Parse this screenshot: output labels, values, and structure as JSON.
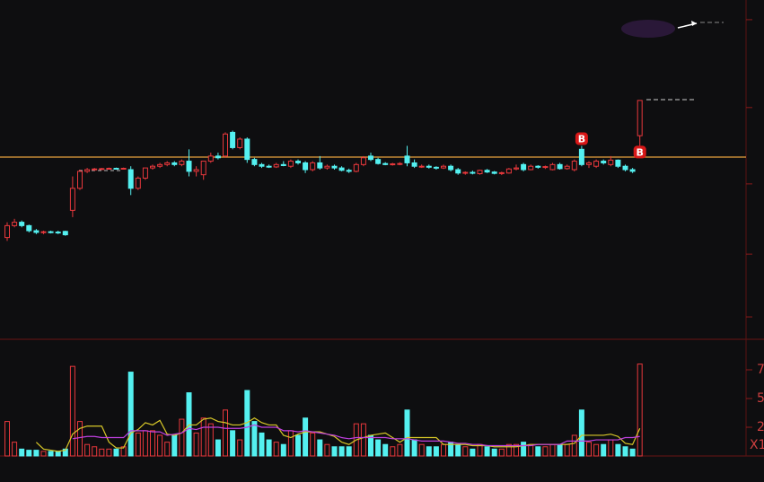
{
  "chart_data": {
    "type": "candlestick",
    "up_color": "#e8383c",
    "down_color": "#54f0f0",
    "ref_line": 53.7,
    "ref_color": "#e8a23c",
    "open": [
      30,
      33.5,
      34.5,
      33.5,
      32,
      31.5,
      31.7,
      31.6,
      31.8,
      38,
      44.5,
      49.5,
      50,
      50.2,
      50.3,
      50.4,
      50.3,
      50,
      44.5,
      47.5,
      50.5,
      51,
      51.5,
      52,
      51.5,
      52.5,
      49.5,
      48.5,
      52.5,
      54,
      54,
      61,
      56.5,
      59,
      53,
      51.5,
      51,
      50.8,
      51.5,
      51,
      52.5,
      52,
      50,
      52,
      50.5,
      51,
      50.5,
      49.8,
      49.5,
      51.5,
      54,
      53,
      51.8,
      51.5,
      51.7,
      54,
      52,
      51,
      51,
      50.7,
      50.5,
      51,
      50,
      49,
      49.2,
      48.8,
      49.8,
      49.3,
      48.9,
      49,
      50.2,
      51.5,
      50,
      51,
      50.7,
      50,
      51.5,
      50.3,
      50,
      56,
      51.5,
      51,
      52.5,
      51.5,
      52.8,
      51,
      50,
      60
    ],
    "high": [
      34.5,
      35.5,
      35,
      33.8,
      32.5,
      32,
      32,
      32,
      32,
      48,
      50,
      50.5,
      50.5,
      50.5,
      50.6,
      50.6,
      50.6,
      51,
      48,
      50.5,
      51.5,
      52,
      52.5,
      52.5,
      53,
      56,
      51,
      52.5,
      55,
      55,
      61,
      61.5,
      59.5,
      59.5,
      53.5,
      52,
      51.5,
      52,
      52.5,
      53,
      53,
      52.5,
      52.5,
      54,
      51.5,
      51.5,
      51,
      50.3,
      52,
      54,
      55,
      53.5,
      52.2,
      52,
      52.2,
      57,
      53,
      51.5,
      51.5,
      51,
      51.5,
      51.5,
      50.5,
      49.5,
      49.7,
      50,
      50.2,
      49.6,
      49.4,
      50.5,
      51.5,
      52,
      51.5,
      51.3,
      51.2,
      52,
      52,
      51.5,
      53,
      57,
      52.5,
      53,
      53,
      54,
      53,
      51.5,
      50.5,
      70.5
    ],
    "low": [
      29,
      33,
      33,
      31.5,
      31,
      31,
      31.2,
      31,
      30.5,
      36,
      44,
      49,
      49.7,
      50,
      50,
      50.1,
      50,
      42.5,
      44,
      47,
      50,
      50.5,
      51,
      51,
      51,
      48,
      48,
      47,
      52,
      53,
      53.5,
      56,
      56,
      52,
      51,
      50.5,
      50.5,
      50.5,
      51,
      50.5,
      51.5,
      49,
      49.5,
      50,
      50,
      50,
      49.5,
      49,
      49.2,
      51,
      52.5,
      51.5,
      51.3,
      51.2,
      51.3,
      51,
      50.5,
      50.5,
      50.3,
      50,
      50.2,
      49.5,
      48.5,
      48.5,
      48.6,
      48.5,
      49,
      48.6,
      48.4,
      48.8,
      49.8,
      49.5,
      49.8,
      50.3,
      50.2,
      49.8,
      50,
      50,
      49.5,
      51,
      50.5,
      50.5,
      51.5,
      51,
      50.5,
      49.5,
      49,
      56.5
    ],
    "close": [
      33.5,
      34.5,
      33.5,
      32,
      31.5,
      31.7,
      31.6,
      31.5,
      30.8,
      44.5,
      49.5,
      50,
      50.2,
      50.3,
      50.4,
      50.3,
      50.4,
      44.5,
      47.5,
      50.5,
      51,
      51.5,
      52,
      51.5,
      52.5,
      49.5,
      50,
      52.5,
      54,
      53.5,
      60.5,
      56.5,
      59,
      53,
      51.5,
      51,
      50.8,
      51.5,
      51.2,
      52.5,
      52,
      50,
      52,
      50.5,
      51,
      50.5,
      49.8,
      49.5,
      51.5,
      53.5,
      53,
      51.8,
      51.5,
      51.7,
      51.8,
      52,
      51,
      51,
      50.7,
      50.5,
      51,
      50,
      49,
      49.2,
      49,
      49.8,
      49.3,
      48.9,
      49.1,
      50.2,
      50.5,
      50,
      51,
      50.7,
      50.9,
      51.5,
      50.3,
      51,
      52.5,
      51.5,
      52,
      52.5,
      52,
      52.8,
      51,
      50,
      49.5,
      70.4
    ],
    "volume": [
      30,
      12,
      6,
      5,
      5,
      4,
      4,
      4,
      6,
      78,
      30,
      10,
      8,
      6,
      6,
      6,
      8,
      73,
      20,
      22,
      22,
      18,
      12,
      18,
      32,
      55,
      20,
      33,
      28,
      14,
      40,
      22,
      14,
      57,
      30,
      20,
      14,
      12,
      10,
      22,
      18,
      33,
      20,
      14,
      10,
      8,
      8,
      8,
      28,
      28,
      18,
      14,
      10,
      8,
      10,
      40,
      14,
      10,
      8,
      8,
      10,
      12,
      10,
      8,
      6,
      10,
      8,
      6,
      6,
      10,
      10,
      12,
      10,
      8,
      8,
      10,
      10,
      10,
      18,
      40,
      12,
      10,
      10,
      14,
      10,
      8,
      6,
      80
    ],
    "volume_lines": [
      {
        "color": "#d8c828",
        "values": [
          null,
          null,
          null,
          null,
          12,
          6,
          5,
          4,
          5,
          19,
          24,
          26,
          26,
          26,
          12,
          7,
          7,
          20,
          23,
          29,
          27,
          31,
          19,
          18,
          20,
          27,
          27,
          32,
          33,
          30,
          29,
          27,
          27,
          29,
          33,
          29,
          27,
          27,
          18,
          16,
          19,
          21,
          21,
          21,
          19,
          17,
          12,
          10,
          14,
          16,
          18,
          19,
          20,
          16,
          12,
          16,
          16,
          16,
          16,
          16,
          10,
          10,
          10,
          10,
          9,
          9,
          9,
          8,
          8,
          8,
          8,
          9,
          10,
          10,
          10,
          10,
          10,
          10,
          11,
          18,
          18,
          18,
          18,
          19,
          17,
          11,
          10,
          24
        ]
      },
      {
        "color": "#c040e0",
        "values": [
          null,
          null,
          null,
          null,
          null,
          null,
          null,
          null,
          null,
          15,
          16,
          17,
          17,
          16,
          16,
          16,
          16,
          22,
          22,
          22,
          21,
          21,
          18,
          19,
          20,
          24,
          23,
          25,
          25,
          25,
          24,
          24,
          24,
          25,
          27,
          25,
          25,
          25,
          22,
          22,
          21,
          22,
          21,
          20,
          19,
          18,
          16,
          15,
          16,
          16,
          16,
          16,
          16,
          15,
          15,
          15,
          14,
          13,
          13,
          13,
          13,
          12,
          11,
          11,
          10,
          10,
          9,
          9,
          9,
          9,
          9,
          9,
          9,
          10,
          10,
          10,
          10,
          13,
          13,
          13,
          13,
          14,
          14,
          14,
          14,
          16,
          16,
          17
        ]
      }
    ],
    "signals": [
      null,
      null,
      null,
      null,
      null,
      null,
      null,
      null,
      null,
      null,
      null,
      null,
      null,
      null,
      null,
      null,
      null,
      null,
      null,
      null,
      null,
      null,
      null,
      null,
      null,
      null,
      null,
      null,
      null,
      null,
      null,
      null,
      null,
      null,
      null,
      null,
      null,
      null,
      null,
      null,
      null,
      null,
      null,
      null,
      null,
      null,
      null,
      null,
      null,
      null,
      null,
      null,
      null,
      null,
      null,
      null,
      null,
      null,
      null,
      null,
      null,
      null,
      null,
      null,
      null,
      null,
      null,
      null,
      null,
      null,
      null,
      null,
      null,
      null,
      null,
      null,
      null,
      null,
      null,
      "B",
      null,
      null,
      null,
      null,
      null,
      null,
      null,
      "B"
    ],
    "ylim": [
      0,
      100
    ],
    "yticks": [
      94.2,
      68.3,
      45.8,
      25.1,
      6.6
    ],
    "volume_ylim": [
      0,
      100
    ],
    "volume_yticks": [
      {
        "value": 75,
        "label": "7"
      },
      {
        "value": 50,
        "label": "5"
      },
      {
        "value": 25,
        "label": "2"
      }
    ],
    "volume_unit": "X1"
  }
}
